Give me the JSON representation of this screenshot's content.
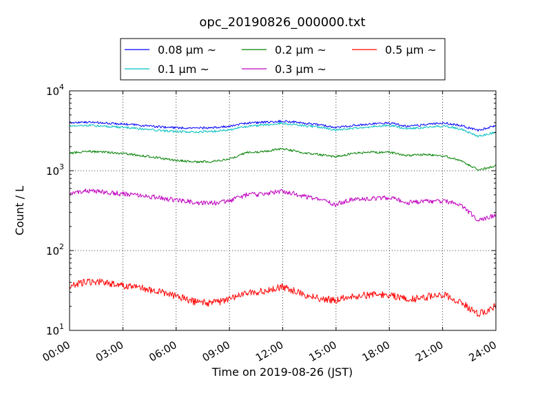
{
  "chart_data": {
    "type": "line",
    "title": "opc_20190826_000000.txt",
    "xlabel": "Time on 2019-08-26 (JST)",
    "ylabel": "Count / L",
    "yscale": "log",
    "ylim": [
      10,
      10000
    ],
    "xlim": [
      "00:00",
      "24:00"
    ],
    "x_ticks": [
      "00:00",
      "03:00",
      "06:00",
      "09:00",
      "12:00",
      "15:00",
      "18:00",
      "21:00",
      "24:00"
    ],
    "y_ticks": [
      {
        "value": 10,
        "base": "10",
        "exp": "1"
      },
      {
        "value": 100,
        "base": "10",
        "exp": "2"
      },
      {
        "value": 1000,
        "base": "10",
        "exp": "3"
      },
      {
        "value": 10000,
        "base": "10",
        "exp": "4"
      }
    ],
    "grid": true,
    "legend_position": "top-center (above plot)",
    "x": [
      "00:00",
      "01:00",
      "02:00",
      "03:00",
      "04:00",
      "05:00",
      "06:00",
      "07:00",
      "08:00",
      "09:00",
      "10:00",
      "11:00",
      "12:00",
      "13:00",
      "14:00",
      "15:00",
      "16:00",
      "17:00",
      "18:00",
      "19:00",
      "20:00",
      "21:00",
      "22:00",
      "23:00",
      "24:00"
    ],
    "series": [
      {
        "name": "0.08 μm ~",
        "color": "#0000ff",
        "values": [
          4000,
          4050,
          3950,
          3850,
          3700,
          3550,
          3450,
          3400,
          3450,
          3600,
          3950,
          4050,
          4200,
          4000,
          3750,
          3500,
          3700,
          3850,
          3950,
          3600,
          3750,
          4000,
          3700,
          3200,
          3700
        ]
      },
      {
        "name": "0.1 μm ~",
        "color": "#00bfbf",
        "values": [
          3650,
          3700,
          3600,
          3500,
          3350,
          3200,
          3100,
          3050,
          3100,
          3250,
          3600,
          3750,
          3950,
          3700,
          3500,
          3250,
          3400,
          3550,
          3700,
          3350,
          3450,
          3650,
          3350,
          2700,
          3050
        ]
      },
      {
        "name": "0.2 μm ~",
        "color": "#008000",
        "values": [
          1650,
          1750,
          1700,
          1650,
          1550,
          1450,
          1350,
          1300,
          1300,
          1400,
          1700,
          1750,
          1900,
          1700,
          1600,
          1500,
          1650,
          1700,
          1700,
          1550,
          1600,
          1550,
          1350,
          1020,
          1150
        ]
      },
      {
        "name": "0.3 μm ~",
        "color": "#bf00bf",
        "values": [
          520,
          560,
          540,
          510,
          490,
          460,
          430,
          400,
          390,
          420,
          500,
          510,
          560,
          490,
          430,
          380,
          440,
          450,
          460,
          400,
          410,
          420,
          380,
          240,
          280
        ]
      },
      {
        "name": "0.5 μm ~",
        "color": "#ff0000",
        "values": [
          36,
          41,
          40,
          36,
          34,
          31,
          27,
          23,
          22,
          24,
          30,
          31,
          35,
          29,
          25,
          24,
          27,
          28,
          28,
          24,
          26,
          28,
          23,
          16,
          20
        ]
      }
    ]
  }
}
